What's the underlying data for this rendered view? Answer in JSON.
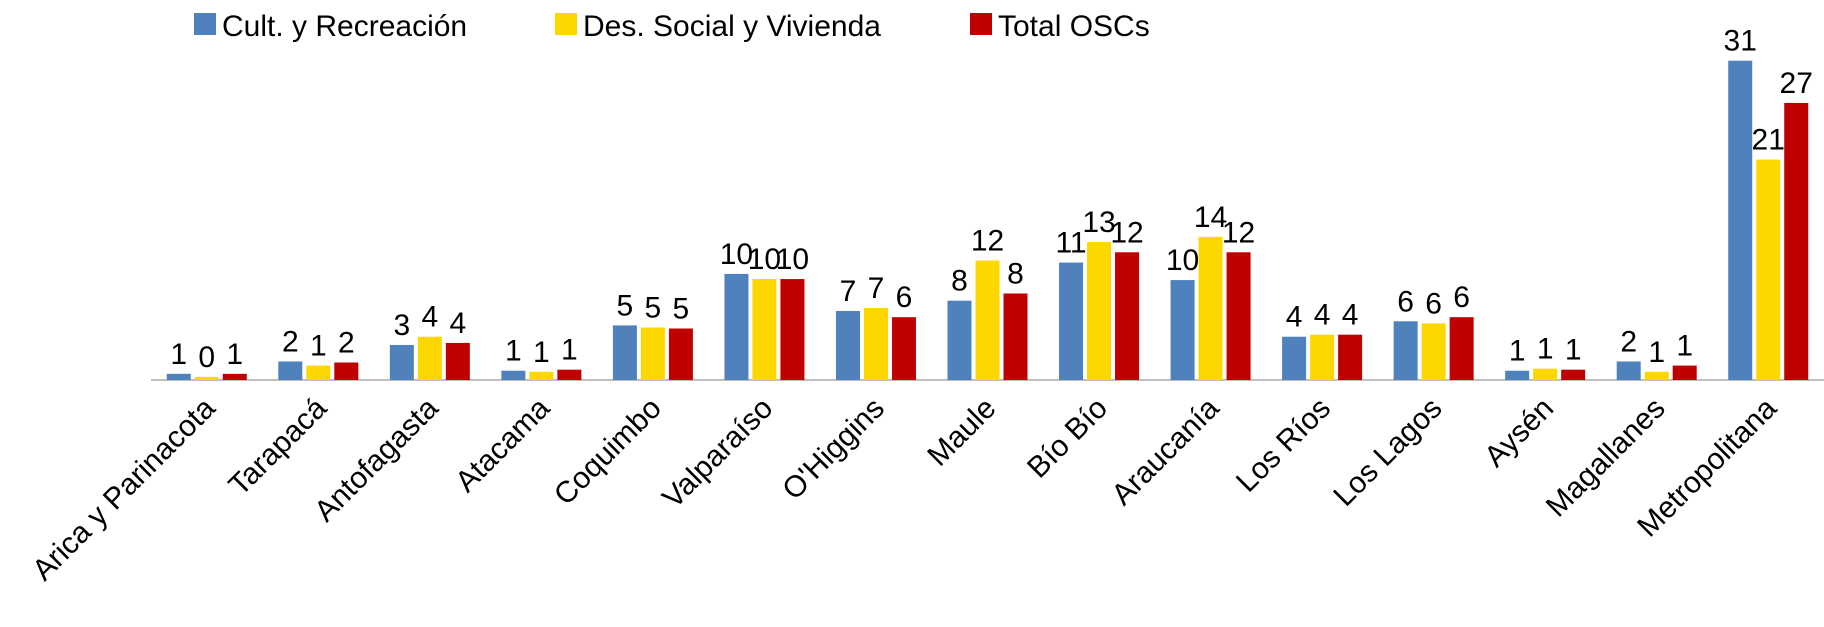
{
  "chart_data": {
    "type": "bar",
    "categories": [
      "Arica y Parinacota",
      "Tarapacá",
      "Antofagasta",
      "Atacama",
      "Coquimbo",
      "Valparaíso",
      "O'Higgins",
      "Maule",
      "Bío Bío",
      "Araucanía",
      "Los Ríos",
      "Los Lagos",
      "Aysén",
      "Magallanes",
      "Metropolitana"
    ],
    "series": [
      {
        "name": "Cult. y Recreación",
        "color": "#4f81bd",
        "values": [
          0.6,
          1.8,
          3.4,
          0.9,
          5.3,
          10.3,
          6.7,
          7.7,
          11.4,
          9.7,
          4.2,
          5.7,
          0.9,
          1.8,
          31.0
        ],
        "value_labels": [
          "1",
          "2",
          "3",
          "1",
          "5",
          "10",
          "7",
          "8",
          "11",
          "10",
          "4",
          "6",
          "1",
          "2",
          "31"
        ]
      },
      {
        "name": "Des. Social y Vivienda",
        "color": "#ffd700",
        "values": [
          0.3,
          1.4,
          4.2,
          0.8,
          5.1,
          9.8,
          7.0,
          11.6,
          13.4,
          13.9,
          4.4,
          5.5,
          1.1,
          0.8,
          21.4
        ],
        "value_labels": [
          "0",
          "1",
          "4",
          "1",
          "5",
          "10",
          "7",
          "12",
          "13",
          "14",
          "4",
          "6",
          "1",
          "1",
          "21"
        ]
      },
      {
        "name": "Total OSCs",
        "color": "#c00000",
        "values": [
          0.6,
          1.7,
          3.6,
          1.0,
          5.0,
          9.8,
          6.1,
          8.4,
          12.4,
          12.4,
          4.4,
          6.1,
          1.0,
          1.4,
          26.9
        ],
        "value_labels": [
          "1",
          "2",
          "4",
          "1",
          "5",
          "10",
          "6",
          "8",
          "12",
          "12",
          "4",
          "6",
          "1",
          "1",
          "27"
        ]
      }
    ],
    "legend": "top"
  }
}
